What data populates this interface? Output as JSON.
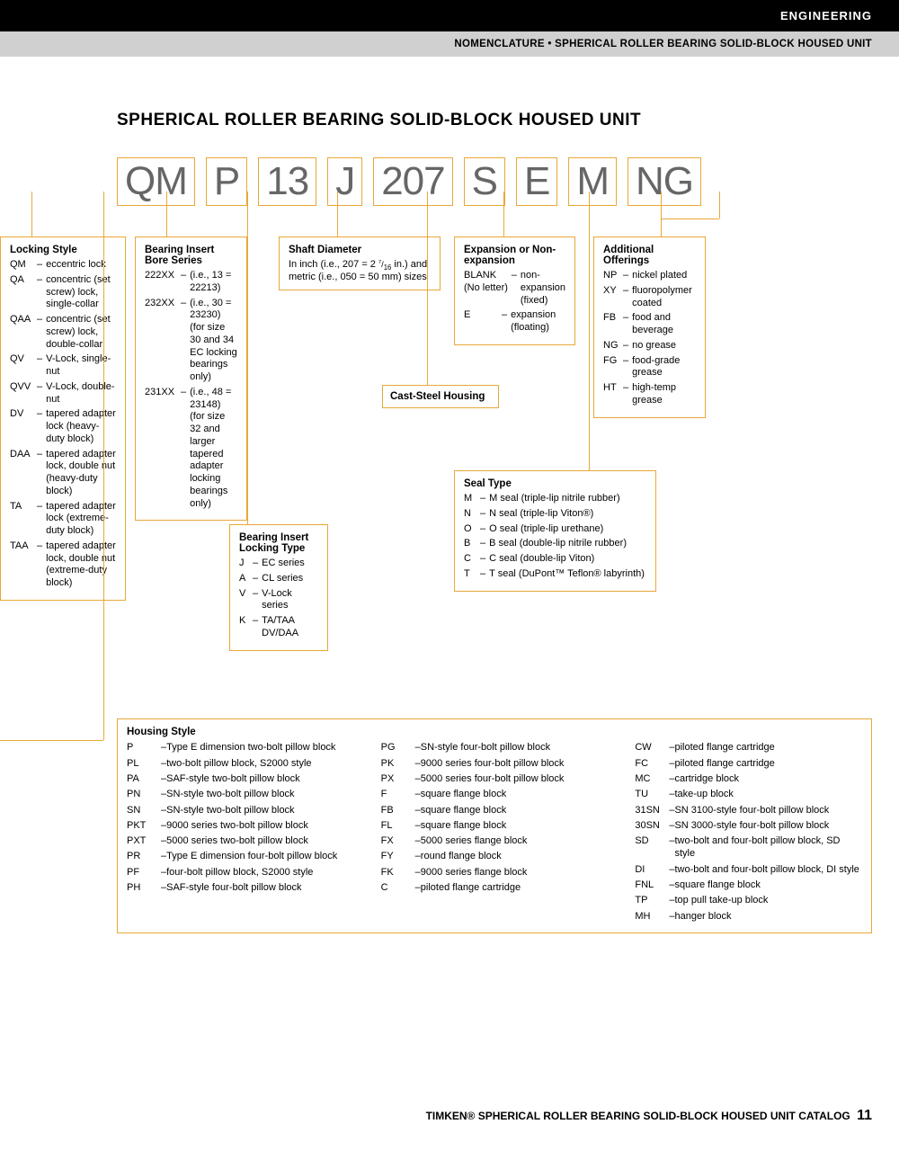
{
  "header": {
    "category": "ENGINEERING",
    "subtitle": "NOMENCLATURE • SPHERICAL ROLLER BEARING SOLID-BLOCK HOUSED UNIT"
  },
  "title": "SPHERICAL ROLLER BEARING SOLID-BLOCK HOUSED UNIT",
  "code_parts": [
    "QM",
    "P",
    "13",
    "J",
    "207",
    "S",
    "E",
    "M",
    "NG"
  ],
  "locking_style": {
    "title": "Locking Style",
    "items": [
      {
        "code": "QM",
        "text": "eccentric lock"
      },
      {
        "code": "QA",
        "text": "concentric (set screw) lock, single-collar"
      },
      {
        "code": "QAA",
        "text": "concentric (set screw) lock, double-collar"
      },
      {
        "code": "QV",
        "text": "V-Lock, single-nut"
      },
      {
        "code": "QVV",
        "text": "V-Lock, double-nut"
      },
      {
        "code": "DV",
        "text": "tapered adapter lock (heavy-duty block)"
      },
      {
        "code": "DAA",
        "text": "tapered adapter lock, double nut (heavy-duty block)"
      },
      {
        "code": "TA",
        "text": "tapered adapter lock (extreme-duty block)"
      },
      {
        "code": "TAA",
        "text": "tapered adapter lock, double nut (extreme-duty block)"
      }
    ]
  },
  "bore_series": {
    "title": "Bearing Insert Bore Series",
    "items": [
      {
        "code": "222XX",
        "text": "(i.e., 13 = 22213)"
      },
      {
        "code": "232XX",
        "text": "(i.e., 30 = 23230) (for size 30 and 34 EC locking bearings only)"
      },
      {
        "code": "231XX",
        "text": "(i.e., 48 = 23148) (for size 32 and larger tapered adapter locking bearings only)"
      }
    ]
  },
  "locking_type": {
    "title": "Bearing Insert Locking Type",
    "items": [
      {
        "code": "J",
        "text": "EC series"
      },
      {
        "code": "A",
        "text": "CL series"
      },
      {
        "code": "V",
        "text": "V-Lock series"
      },
      {
        "code": "K",
        "text": "TA/TAA DV/DAA"
      }
    ]
  },
  "shaft_diameter": {
    "title": "Shaft Diameter",
    "text": "In inch (i.e., 207 = 2 7/16 in.) and metric (i.e., 050 = 50 mm) sizes"
  },
  "cast_steel": {
    "title": "Cast-Steel Housing"
  },
  "expansion": {
    "title": "Expansion or Non-expansion",
    "items": [
      {
        "code": "BLANK (No letter)",
        "text": "non-expansion (fixed)"
      },
      {
        "code": "E",
        "text": "expansion (floating)"
      }
    ]
  },
  "seal_type": {
    "title": "Seal Type",
    "items": [
      {
        "code": "M",
        "text": "M seal (triple-lip nitrile rubber)"
      },
      {
        "code": "N",
        "text": "N seal (triple-lip Viton®)"
      },
      {
        "code": "O",
        "text": "O seal (triple-lip urethane)"
      },
      {
        "code": "B",
        "text": "B seal (double-lip nitrile rubber)"
      },
      {
        "code": "C",
        "text": "C seal (double-lip Viton)"
      },
      {
        "code": "T",
        "text": "T seal (DuPont™ Teflon® labyrinth)"
      }
    ]
  },
  "additional": {
    "title": "Additional Offerings",
    "items": [
      {
        "code": "NP",
        "text": "nickel plated"
      },
      {
        "code": "XY",
        "text": "fluoropolymer coated"
      },
      {
        "code": "FB",
        "text": "food and beverage"
      },
      {
        "code": "NG",
        "text": "no grease"
      },
      {
        "code": "FG",
        "text": "food-grade grease"
      },
      {
        "code": "HT",
        "text": "high-temp grease"
      }
    ]
  },
  "housing_style": {
    "title": "Housing Style",
    "col1": [
      {
        "code": "P",
        "text": "Type E dimension two-bolt pillow block"
      },
      {
        "code": "PL",
        "text": "two-bolt pillow block, S2000 style"
      },
      {
        "code": "PA",
        "text": "SAF-style two-bolt pillow block"
      },
      {
        "code": "PN",
        "text": "SN-style two-bolt pillow block"
      },
      {
        "code": "SN",
        "text": "SN-style two-bolt pillow block"
      },
      {
        "code": "PKT",
        "text": "9000 series two-bolt pillow block"
      },
      {
        "code": "PXT",
        "text": "5000 series two-bolt pillow block"
      },
      {
        "code": "PR",
        "text": "Type E dimension four-bolt pillow block"
      },
      {
        "code": "PF",
        "text": "four-bolt pillow block, S2000 style"
      },
      {
        "code": "PH",
        "text": "SAF-style four-bolt pillow block"
      }
    ],
    "col2": [
      {
        "code": "PG",
        "text": "SN-style four-bolt pillow block"
      },
      {
        "code": "PK",
        "text": "9000 series four-bolt pillow block"
      },
      {
        "code": "PX",
        "text": "5000 series four-bolt pillow block"
      },
      {
        "code": "F",
        "text": "square flange block"
      },
      {
        "code": "FB",
        "text": "square flange block"
      },
      {
        "code": "FL",
        "text": "square flange block"
      },
      {
        "code": "FX",
        "text": "5000 series flange block"
      },
      {
        "code": "FY",
        "text": "round flange block"
      },
      {
        "code": "FK",
        "text": "9000 series flange block"
      },
      {
        "code": "C",
        "text": "piloted flange cartridge"
      }
    ],
    "col3": [
      {
        "code": "CW",
        "text": "piloted flange cartridge"
      },
      {
        "code": "FC",
        "text": "piloted flange cartridge"
      },
      {
        "code": "MC",
        "text": "cartridge block"
      },
      {
        "code": "TU",
        "text": "take-up block"
      },
      {
        "code": "31SN",
        "text": "SN 3100-style four-bolt pillow block"
      },
      {
        "code": "30SN",
        "text": "SN 3000-style four-bolt pillow block"
      },
      {
        "code": "SD",
        "text": "two-bolt and four-bolt pillow block, SD style"
      },
      {
        "code": "DI",
        "text": "two-bolt and four-bolt pillow block, DI style"
      },
      {
        "code": "FNL",
        "text": "square flange block"
      },
      {
        "code": "TP",
        "text": "top pull take-up block"
      },
      {
        "code": "MH",
        "text": "hanger block"
      }
    ]
  },
  "footer": {
    "text": "TIMKEN® SPHERICAL ROLLER BEARING SOLID-BLOCK HOUSED UNIT CATALOG",
    "page": "11"
  },
  "colors": {
    "box_border": "#e8a838",
    "code_text": "#666666",
    "header_bg": "#000000",
    "subheader_bg": "#d0d0d0"
  }
}
